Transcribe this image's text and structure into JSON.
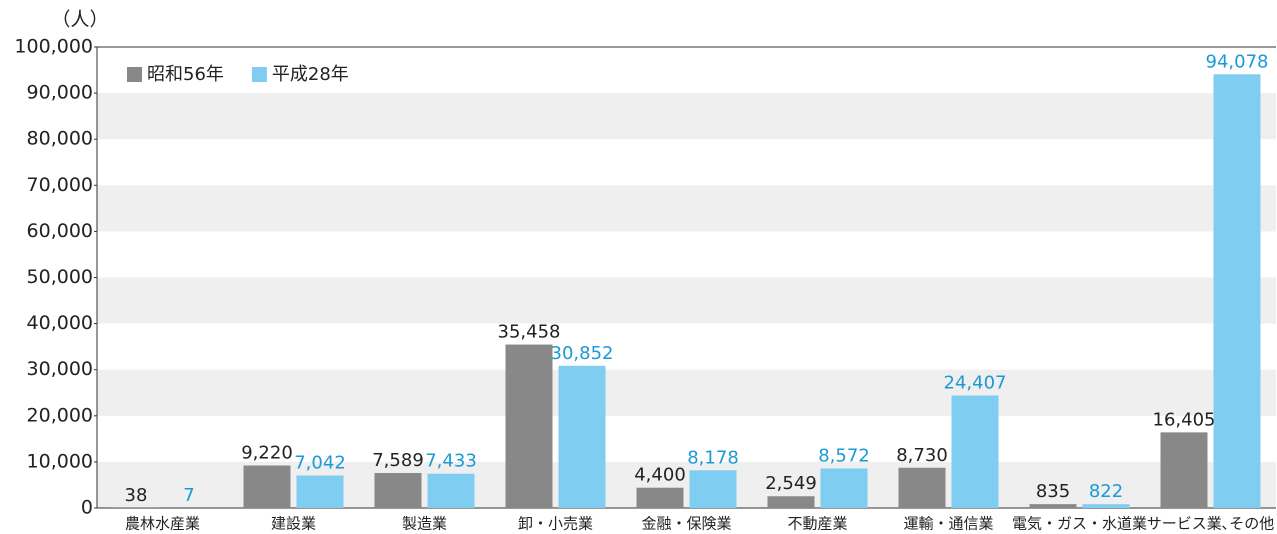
{
  "chart_data": {
    "type": "bar",
    "ylabel": "（人）",
    "categories": [
      "農林水産業",
      "建設業",
      "製造業",
      "卸・小売業",
      "金融・保険業",
      "不動産業",
      "運輸・通信業",
      "電気・ガス・水道業",
      "サービス業､その他"
    ],
    "series": [
      {
        "name": "昭和56年",
        "color": "#888888",
        "label_color": "#222222",
        "values": [
          38,
          9220,
          7589,
          35458,
          4400,
          2549,
          8730,
          835,
          16405
        ],
        "value_labels": [
          "38",
          "9,220",
          "7,589",
          "35,458",
          "4,400",
          "2,549",
          "8,730",
          "835",
          "16,405"
        ]
      },
      {
        "name": "平成28年",
        "color": "#7fcef2",
        "label_color": "#1a9ad6",
        "values": [
          7,
          7042,
          7433,
          30852,
          8178,
          8572,
          24407,
          822,
          94078
        ],
        "value_labels": [
          "7",
          "7,042",
          "7,433",
          "30,852",
          "8,178",
          "8,572",
          "24,407",
          "822",
          "94,078"
        ]
      }
    ],
    "ylim": [
      0,
      100000
    ],
    "yticks": [
      0,
      {
        "value": 10000,
        "label": "10,000"
      },
      {
        "value": 20000,
        "label": "20,000"
      },
      {
        "value": 30000,
        "label": "30,000"
      },
      {
        "value": 40000,
        "label": "40,000"
      },
      {
        "value": 50000,
        "label": "50,000"
      },
      {
        "value": 60000,
        "label": "60,000"
      },
      {
        "value": 70000,
        "label": "70,000"
      },
      {
        "value": 80000,
        "label": "80,000"
      },
      {
        "value": 90000,
        "label": "90,000"
      },
      {
        "value": 100000,
        "label": "100,000"
      }
    ],
    "grid": "banded",
    "band_color": "#efefef",
    "legend": "top-left"
  }
}
